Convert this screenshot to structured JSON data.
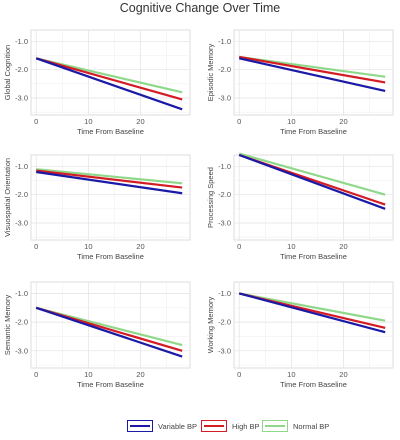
{
  "title": "Cognitive Change Over Time",
  "legend": {
    "items": [
      {
        "label": "Variable BP",
        "color": "#1a1aa6"
      },
      {
        "label": "High BP",
        "color": "#d41c24"
      },
      {
        "label": "Normal BP",
        "color": "#8fd88a"
      }
    ]
  },
  "chart_data": [
    {
      "type": "line",
      "ylabel": "Global Cognition",
      "xlabel": "Time From Baseline",
      "xlim": [
        -1,
        29.5
      ],
      "ylim": [
        -3.6,
        -0.6
      ],
      "xticks": [
        0,
        10,
        20
      ],
      "yticks": [
        -1.0,
        -2.0,
        -3.0
      ],
      "ytick_labels": [
        "-1.0",
        "-2.0",
        "-3.0"
      ],
      "grid": true,
      "series": [
        {
          "name": "Variable BP",
          "x": [
            0,
            28
          ],
          "y": [
            -1.6,
            -3.4
          ]
        },
        {
          "name": "High BP",
          "x": [
            0,
            28
          ],
          "y": [
            -1.6,
            -3.05
          ]
        },
        {
          "name": "Normal BP",
          "x": [
            0,
            28
          ],
          "y": [
            -1.6,
            -2.8
          ]
        }
      ]
    },
    {
      "type": "line",
      "ylabel": "Episodic Memory",
      "xlabel": "Time From Baseline",
      "xlim": [
        -1,
        29.5
      ],
      "ylim": [
        -3.6,
        -0.6
      ],
      "xticks": [
        0,
        10,
        20
      ],
      "yticks": [
        -1.0,
        -2.0,
        -3.0
      ],
      "ytick_labels": [
        "-1.0",
        "-2.0",
        "-3.0"
      ],
      "grid": true,
      "series": [
        {
          "name": "Variable BP",
          "x": [
            0,
            28
          ],
          "y": [
            -1.6,
            -2.75
          ]
        },
        {
          "name": "High BP",
          "x": [
            0,
            28
          ],
          "y": [
            -1.55,
            -2.45
          ]
        },
        {
          "name": "Normal BP",
          "x": [
            0,
            28
          ],
          "y": [
            -1.55,
            -2.25
          ]
        }
      ]
    },
    {
      "type": "line",
      "ylabel": "Visuospatial Orientation",
      "xlabel": "Time From Baseline",
      "xlim": [
        -1,
        29.5
      ],
      "ylim": [
        -3.6,
        -0.6
      ],
      "xticks": [
        0,
        10,
        20
      ],
      "yticks": [
        -1.0,
        -2.0,
        -3.0
      ],
      "ytick_labels": [
        "-1.0",
        "-2.0",
        "-3.0"
      ],
      "grid": true,
      "series": [
        {
          "name": "Variable BP",
          "x": [
            0,
            28
          ],
          "y": [
            -1.2,
            -1.95
          ]
        },
        {
          "name": "High BP",
          "x": [
            0,
            28
          ],
          "y": [
            -1.15,
            -1.75
          ]
        },
        {
          "name": "Normal BP",
          "x": [
            0,
            28
          ],
          "y": [
            -1.1,
            -1.6
          ]
        }
      ]
    },
    {
      "type": "line",
      "ylabel": "Processing Speed",
      "xlabel": "Time From Baseline",
      "xlim": [
        -1,
        29.5
      ],
      "ylim": [
        -3.6,
        -0.6
      ],
      "xticks": [
        0,
        10,
        20
      ],
      "yticks": [
        -1.0,
        -2.0,
        -3.0
      ],
      "ytick_labels": [
        "-1.0",
        "-2.0",
        "-3.0"
      ],
      "grid": true,
      "series": [
        {
          "name": "Variable BP",
          "x": [
            0,
            28
          ],
          "y": [
            -0.6,
            -2.5
          ]
        },
        {
          "name": "High BP",
          "x": [
            0,
            28
          ],
          "y": [
            -0.6,
            -2.35
          ]
        },
        {
          "name": "Normal BP",
          "x": [
            0,
            28
          ],
          "y": [
            -0.55,
            -2.0
          ]
        }
      ]
    },
    {
      "type": "line",
      "ylabel": "Semantic Memory",
      "xlabel": "Time From Baseline",
      "xlim": [
        -1,
        29.5
      ],
      "ylim": [
        -3.6,
        -0.6
      ],
      "xticks": [
        0,
        10,
        20
      ],
      "yticks": [
        -1.0,
        -2.0,
        -3.0
      ],
      "ytick_labels": [
        "-1.0",
        "-2.0",
        "-3.0"
      ],
      "grid": true,
      "series": [
        {
          "name": "Variable BP",
          "x": [
            0,
            28
          ],
          "y": [
            -1.5,
            -3.2
          ]
        },
        {
          "name": "High BP",
          "x": [
            0,
            28
          ],
          "y": [
            -1.5,
            -3.0
          ]
        },
        {
          "name": "Normal BP",
          "x": [
            0,
            28
          ],
          "y": [
            -1.5,
            -2.8
          ]
        }
      ]
    },
    {
      "type": "line",
      "ylabel": "Working Memory",
      "xlabel": "Time From Baseline",
      "xlim": [
        -1,
        29.5
      ],
      "ylim": [
        -3.6,
        -0.6
      ],
      "xticks": [
        0,
        10,
        20
      ],
      "yticks": [
        -1.0,
        -2.0,
        -3.0
      ],
      "ytick_labels": [
        "-1.0",
        "-2.0",
        "-3.0"
      ],
      "grid": true,
      "series": [
        {
          "name": "Variable BP",
          "x": [
            0,
            28
          ],
          "y": [
            -1.0,
            -2.35
          ]
        },
        {
          "name": "High BP",
          "x": [
            0,
            28
          ],
          "y": [
            -1.0,
            -2.2
          ]
        },
        {
          "name": "Normal BP",
          "x": [
            0,
            28
          ],
          "y": [
            -1.0,
            -1.95
          ]
        }
      ]
    }
  ]
}
